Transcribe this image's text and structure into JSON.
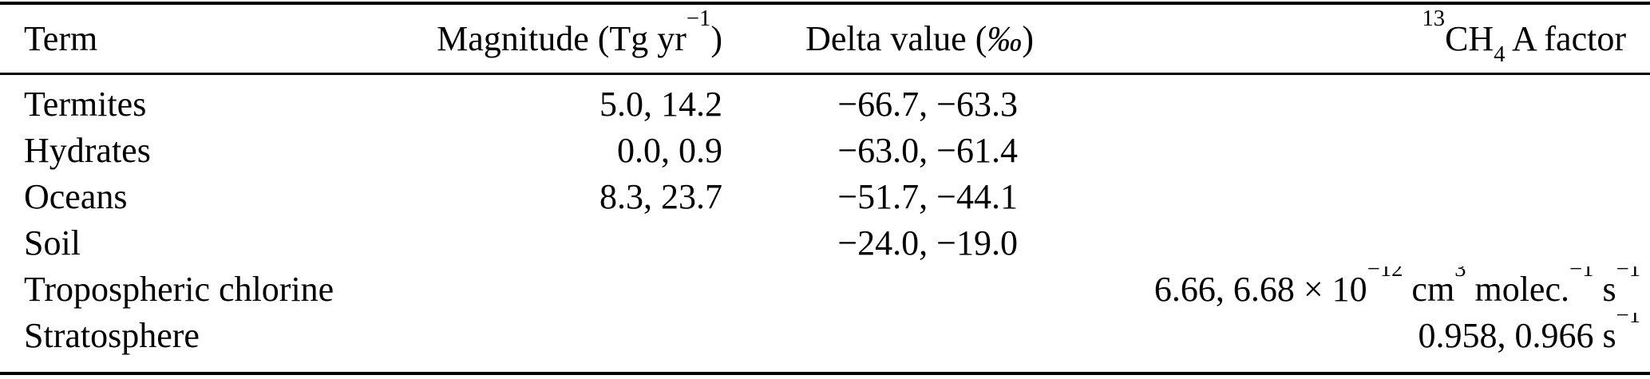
{
  "colors": {
    "background": "#ffffff",
    "text": "#000000",
    "rule": "#000000"
  },
  "table": {
    "columns": [
      {
        "key": "term",
        "label": "Term",
        "align": "left"
      },
      {
        "key": "magnitude",
        "label": "Magnitude (Tg yr^{−1})",
        "align": "right"
      },
      {
        "key": "delta",
        "label": "Delta value (*{‰})",
        "align": "right"
      },
      {
        "key": "afactor",
        "label": "^{13}CH_{4} A factor",
        "align": "right"
      }
    ],
    "rows": [
      [
        "Termites",
        "5.0, 14.2",
        "−66.7, −63.3",
        ""
      ],
      [
        "Hydrates",
        "0.0, 0.9",
        "−63.0, −61.4",
        ""
      ],
      [
        "Oceans",
        "8.3, 23.7",
        "−51.7, −44.1",
        ""
      ],
      [
        "Soil",
        "",
        "−24.0, −19.0",
        ""
      ],
      [
        "Tropospheric chlorine",
        "",
        "",
        "6.66, 6.68 × 10^{−12} cm^{3} molec.^{−1} s^{−1}"
      ],
      [
        "Stratosphere",
        "",
        "",
        "0.958, 0.966 s^{−1}"
      ]
    ]
  }
}
